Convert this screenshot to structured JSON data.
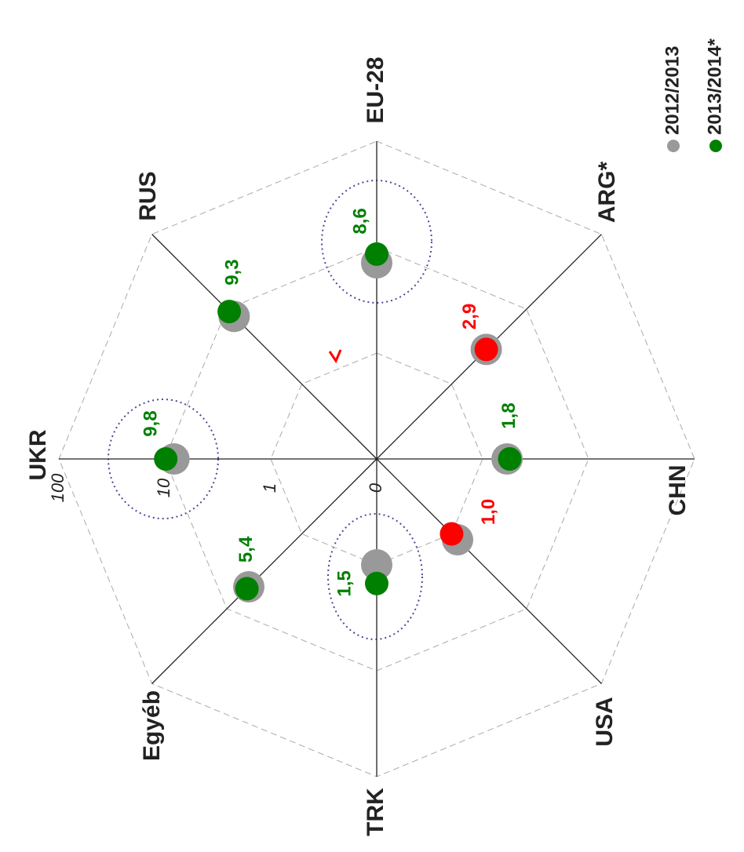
{
  "chart_data": {
    "type": "radar",
    "categories": [
      "EU-28",
      "ARG*",
      "CHN",
      "USA",
      "TRK",
      "Egyéb",
      "UKR",
      "RUS"
    ],
    "series": [
      {
        "name": "2012/2013",
        "color": "#999999",
        "values": [
          7.1,
          2.9,
          1.7,
          1.2,
          1.0,
          5.1,
          8.2,
          8.0
        ]
      },
      {
        "name": "2013/2014*",
        "color": "#008000",
        "point_colors": [
          "#008000",
          "#ff0000",
          "#008000",
          "#ff0000",
          "#008000",
          "#008000",
          "#008000",
          "#008000"
        ],
        "values": [
          8.6,
          2.9,
          1.8,
          1.0,
          1.5,
          5.4,
          9.8,
          9.3
        ],
        "value_labels": [
          "8,6",
          "2,9",
          "1,8",
          "1,0",
          "1,5",
          "5,4",
          "9,8",
          "9,3"
        ]
      }
    ],
    "rlim": [
      0.1,
      100
    ],
    "rticks": [
      {
        "value": 0.1,
        "label": "0"
      },
      1,
      10,
      100
    ],
    "log_scale": true,
    "grid": true
  }
}
